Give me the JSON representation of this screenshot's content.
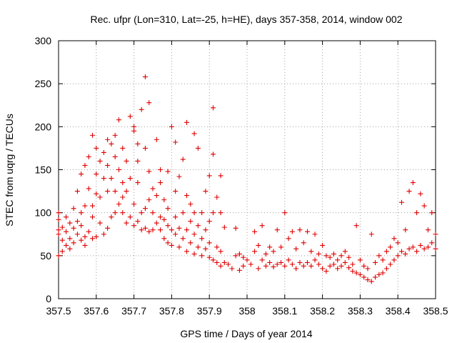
{
  "chart_data": {
    "type": "scatter",
    "title": "Rec. ufpr (Lon=310, Lat=-25, h=HE), days 357-358, 2014, window 002",
    "xlabel": "GPS time / Days of year 2014",
    "ylabel": "STEC from uqrg / TECUs",
    "xlim": [
      357.5,
      358.5
    ],
    "ylim": [
      0,
      300
    ],
    "xticks": [
      357.5,
      357.6,
      357.7,
      357.8,
      357.9,
      358,
      358.1,
      358.2,
      358.3,
      358.4,
      358.5
    ],
    "xtick_labels": [
      "357.5",
      "357.6",
      "357.7",
      "357.8",
      "357.9",
      "358",
      "358.1",
      "358.2",
      "358.3",
      "358.4",
      "358.5"
    ],
    "yticks": [
      0,
      50,
      100,
      150,
      200,
      250,
      300
    ],
    "ytick_labels": [
      "0",
      "50",
      "100",
      "150",
      "200",
      "250",
      "300"
    ],
    "grid": true,
    "marker": "+",
    "color": "#e00000",
    "series": [
      {
        "name": "STEC",
        "points": [
          [
            357.5,
            75
          ],
          [
            357.5,
            80
          ],
          [
            357.5,
            92
          ],
          [
            357.5,
            100
          ],
          [
            357.5,
            50
          ],
          [
            357.51,
            68
          ],
          [
            357.51,
            83
          ],
          [
            357.51,
            55
          ],
          [
            357.52,
            62
          ],
          [
            357.52,
            95
          ],
          [
            357.52,
            78
          ],
          [
            357.53,
            70
          ],
          [
            357.53,
            88
          ],
          [
            357.53,
            58
          ],
          [
            357.54,
            82
          ],
          [
            357.54,
            105
          ],
          [
            357.54,
            65
          ],
          [
            357.55,
            75
          ],
          [
            357.55,
            125
          ],
          [
            357.55,
            90
          ],
          [
            357.56,
            68
          ],
          [
            357.56,
            85
          ],
          [
            357.56,
            100
          ],
          [
            357.56,
            145
          ],
          [
            357.57,
            72
          ],
          [
            357.57,
            155
          ],
          [
            357.57,
            108
          ],
          [
            357.57,
            62
          ],
          [
            357.58,
            165
          ],
          [
            357.58,
            78
          ],
          [
            357.58,
            128
          ],
          [
            357.59,
            95
          ],
          [
            357.59,
            190
          ],
          [
            357.59,
            70
          ],
          [
            357.59,
            108
          ],
          [
            357.6,
            72
          ],
          [
            357.6,
            122
          ],
          [
            357.6,
            145
          ],
          [
            357.6,
            175
          ],
          [
            357.61,
            88
          ],
          [
            357.61,
            118
          ],
          [
            357.61,
            160
          ],
          [
            357.62,
            75
          ],
          [
            357.62,
            140
          ],
          [
            357.62,
            170
          ],
          [
            357.63,
            82
          ],
          [
            357.63,
            185
          ],
          [
            357.63,
            125
          ],
          [
            357.63,
            155
          ],
          [
            357.64,
            95
          ],
          [
            357.64,
            140
          ],
          [
            357.64,
            180
          ],
          [
            357.65,
            100
          ],
          [
            357.65,
            125
          ],
          [
            357.65,
            165
          ],
          [
            357.65,
            190
          ],
          [
            357.66,
            110
          ],
          [
            357.66,
            150
          ],
          [
            357.66,
            208
          ],
          [
            357.67,
            100
          ],
          [
            357.67,
            118
          ],
          [
            357.67,
            135
          ],
          [
            357.67,
            175
          ],
          [
            357.68,
            88
          ],
          [
            357.68,
            125
          ],
          [
            357.68,
            160
          ],
          [
            357.69,
            95
          ],
          [
            357.69,
            140
          ],
          [
            357.69,
            212
          ],
          [
            357.7,
            85
          ],
          [
            357.7,
            110
          ],
          [
            357.7,
            195
          ],
          [
            357.7,
            200
          ],
          [
            357.71,
            90
          ],
          [
            357.71,
            135
          ],
          [
            357.71,
            160
          ],
          [
            357.71,
            180
          ],
          [
            357.72,
            80
          ],
          [
            357.72,
            100
          ],
          [
            357.72,
            220
          ],
          [
            357.73,
            82
          ],
          [
            357.73,
            105
          ],
          [
            357.73,
            258
          ],
          [
            357.73,
            175
          ],
          [
            357.74,
            78
          ],
          [
            357.74,
            115
          ],
          [
            357.74,
            148
          ],
          [
            357.74,
            228
          ],
          [
            357.75,
            80
          ],
          [
            357.75,
            100
          ],
          [
            357.75,
            128
          ],
          [
            357.76,
            88
          ],
          [
            357.76,
            120
          ],
          [
            357.76,
            185
          ],
          [
            357.77,
            80
          ],
          [
            357.77,
            95
          ],
          [
            357.77,
            135
          ],
          [
            357.77,
            150
          ],
          [
            357.78,
            70
          ],
          [
            357.78,
            92
          ],
          [
            357.78,
            115
          ],
          [
            357.79,
            65
          ],
          [
            357.79,
            85
          ],
          [
            357.79,
            105
          ],
          [
            357.79,
            148
          ],
          [
            357.8,
            200
          ],
          [
            357.8,
            80
          ],
          [
            357.8,
            62
          ],
          [
            357.81,
            75
          ],
          [
            357.81,
            95
          ],
          [
            357.81,
            182
          ],
          [
            357.81,
            125
          ],
          [
            357.82,
            60
          ],
          [
            357.82,
            82
          ],
          [
            357.82,
            142
          ],
          [
            357.83,
            70
          ],
          [
            357.83,
            100
          ],
          [
            357.83,
            162
          ],
          [
            357.84,
            55
          ],
          [
            357.84,
            80
          ],
          [
            357.84,
            205
          ],
          [
            357.84,
            120
          ],
          [
            357.85,
            65
          ],
          [
            357.85,
            90
          ],
          [
            357.85,
            110
          ],
          [
            357.86,
            52
          ],
          [
            357.86,
            75
          ],
          [
            357.86,
            192
          ],
          [
            357.86,
            100
          ],
          [
            357.87,
            60
          ],
          [
            357.87,
            85
          ],
          [
            357.87,
            175
          ],
          [
            357.88,
            50
          ],
          [
            357.88,
            70
          ],
          [
            357.88,
            100
          ],
          [
            357.89,
            58
          ],
          [
            357.89,
            80
          ],
          [
            357.89,
            125
          ],
          [
            357.9,
            48
          ],
          [
            357.9,
            65
          ],
          [
            357.9,
            90
          ],
          [
            357.9,
            143
          ],
          [
            357.91,
            45
          ],
          [
            357.91,
            100
          ],
          [
            357.91,
            168
          ],
          [
            357.91,
            222
          ],
          [
            357.92,
            42
          ],
          [
            357.92,
            60
          ],
          [
            357.92,
            118
          ],
          [
            357.93,
            38
          ],
          [
            357.93,
            55
          ],
          [
            357.93,
            100
          ],
          [
            357.93,
            143
          ],
          [
            357.94,
            42
          ],
          [
            357.94,
            83
          ],
          [
            357.95,
            40
          ],
          [
            357.96,
            35
          ],
          [
            357.97,
            50
          ],
          [
            357.97,
            82
          ],
          [
            357.98,
            33
          ],
          [
            357.98,
            52
          ],
          [
            357.99,
            38
          ],
          [
            357.99,
            48
          ],
          [
            358.0,
            45
          ],
          [
            358.01,
            40
          ],
          [
            358.02,
            55
          ],
          [
            358.02,
            78
          ],
          [
            358.03,
            35
          ],
          [
            358.03,
            62
          ],
          [
            358.04,
            45
          ],
          [
            358.04,
            85
          ],
          [
            358.05,
            38
          ],
          [
            358.05,
            52
          ],
          [
            358.06,
            42
          ],
          [
            358.06,
            60
          ],
          [
            358.07,
            37
          ],
          [
            358.07,
            55
          ],
          [
            358.08,
            40
          ],
          [
            358.08,
            80
          ],
          [
            358.09,
            42
          ],
          [
            358.09,
            60
          ],
          [
            358.1,
            38
          ],
          [
            358.1,
            100
          ],
          [
            358.11,
            45
          ],
          [
            358.11,
            70
          ],
          [
            358.12,
            40
          ],
          [
            358.12,
            78
          ],
          [
            358.13,
            35
          ],
          [
            358.13,
            58
          ],
          [
            358.14,
            42
          ],
          [
            358.14,
            80
          ],
          [
            358.15,
            38
          ],
          [
            358.15,
            65
          ],
          [
            358.16,
            42
          ],
          [
            358.16,
            78
          ],
          [
            358.17,
            38
          ],
          [
            358.17,
            55
          ],
          [
            358.18,
            45
          ],
          [
            358.18,
            75
          ],
          [
            358.19,
            40
          ],
          [
            358.19,
            52
          ],
          [
            358.2,
            35
          ],
          [
            358.2,
            62
          ],
          [
            358.21,
            32
          ],
          [
            358.21,
            50
          ],
          [
            358.22,
            38
          ],
          [
            358.22,
            48
          ],
          [
            358.23,
            40
          ],
          [
            358.23,
            52
          ],
          [
            358.24,
            35
          ],
          [
            358.24,
            45
          ],
          [
            358.25,
            38
          ],
          [
            358.25,
            50
          ],
          [
            358.26,
            42
          ],
          [
            358.26,
            55
          ],
          [
            358.27,
            36
          ],
          [
            358.27,
            48
          ],
          [
            358.28,
            32
          ],
          [
            358.28,
            40
          ],
          [
            358.29,
            30
          ],
          [
            358.29,
            85
          ],
          [
            358.3,
            28
          ],
          [
            358.3,
            45
          ],
          [
            358.31,
            25
          ],
          [
            358.31,
            38
          ],
          [
            358.32,
            22
          ],
          [
            358.32,
            35
          ],
          [
            358.33,
            20
          ],
          [
            358.33,
            75
          ],
          [
            358.34,
            25
          ],
          [
            358.34,
            42
          ],
          [
            358.35,
            28
          ],
          [
            358.35,
            50
          ],
          [
            358.36,
            30
          ],
          [
            358.36,
            45
          ],
          [
            358.37,
            35
          ],
          [
            358.37,
            55
          ],
          [
            358.38,
            40
          ],
          [
            358.38,
            60
          ],
          [
            358.39,
            45
          ],
          [
            358.39,
            70
          ],
          [
            358.4,
            50
          ],
          [
            358.4,
            65
          ],
          [
            358.41,
            55
          ],
          [
            358.41,
            112
          ],
          [
            358.42,
            52
          ],
          [
            358.42,
            80
          ],
          [
            358.43,
            58
          ],
          [
            358.43,
            125
          ],
          [
            358.44,
            60
          ],
          [
            358.44,
            135
          ],
          [
            358.45,
            55
          ],
          [
            358.45,
            100
          ],
          [
            358.46,
            62
          ],
          [
            358.46,
            122
          ],
          [
            358.47,
            58
          ],
          [
            358.47,
            108
          ],
          [
            358.48,
            60
          ],
          [
            358.48,
            80
          ],
          [
            358.49,
            65
          ],
          [
            358.49,
            100
          ],
          [
            358.5,
            58
          ],
          [
            358.5,
            75
          ]
        ]
      }
    ]
  }
}
